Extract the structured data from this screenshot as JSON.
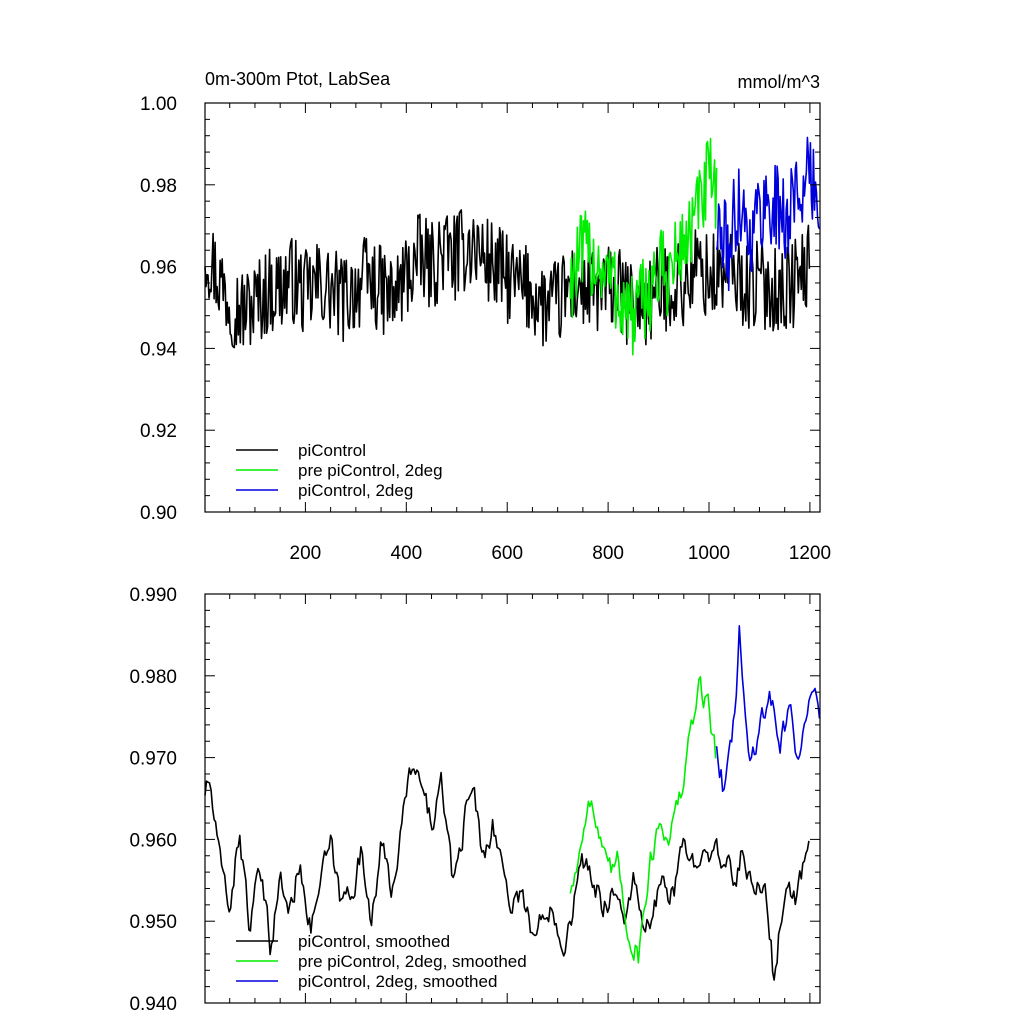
{
  "chart_data": [
    {
      "type": "line",
      "title": "0m-300m Ptot, LabSea",
      "units": "mmol/m^3",
      "xlim": [
        1,
        1220
      ],
      "ylim": [
        0.9,
        1.0
      ],
      "xticks": [
        200,
        400,
        600,
        800,
        1000,
        1200
      ],
      "xtick_labels": [
        "200",
        "400",
        "600",
        "800",
        "1000",
        "1200"
      ],
      "yticks": [
        0.9,
        0.92,
        0.94,
        0.96,
        0.98,
        1.0
      ],
      "ytick_labels": [
        "0.90",
        "0.92",
        "0.94",
        "0.96",
        "0.98",
        "1.00"
      ],
      "grid": false,
      "legend_position": "bottom-left",
      "series": [
        {
          "name": "piControl",
          "color": "#000000",
          "x": [
            1,
            25,
            50,
            75,
            100,
            125,
            150,
            175,
            200,
            225,
            250,
            275,
            300,
            325,
            350,
            375,
            400,
            425,
            450,
            475,
            500,
            525,
            550,
            575,
            600,
            625,
            650,
            675,
            700,
            725,
            750,
            775,
            800,
            825,
            850,
            875,
            900,
            925,
            950,
            975,
            1000,
            1025,
            1050,
            1075,
            1100,
            1125,
            1150,
            1175,
            1200
          ],
          "y": [
            0.965,
            0.958,
            0.952,
            0.949,
            0.951,
            0.954,
            0.955,
            0.957,
            0.953,
            0.956,
            0.954,
            0.952,
            0.955,
            0.957,
            0.954,
            0.952,
            0.958,
            0.962,
            0.96,
            0.964,
            0.962,
            0.966,
            0.963,
            0.96,
            0.957,
            0.955,
            0.954,
            0.95,
            0.951,
            0.955,
            0.955,
            0.953,
            0.955,
            0.953,
            0.95,
            0.951,
            0.954,
            0.956,
            0.955,
            0.96,
            0.957,
            0.958,
            0.958,
            0.955,
            0.956,
            0.955,
            0.954,
            0.957,
            0.96
          ]
        },
        {
          "name": "pre piControl, 2deg",
          "color": "#00ee00",
          "x": [
            725,
            750,
            775,
            800,
            825,
            850,
            875,
            900,
            925,
            950,
            975,
            1000,
            1015
          ],
          "y": [
            0.957,
            0.963,
            0.962,
            0.958,
            0.952,
            0.947,
            0.953,
            0.958,
            0.959,
            0.966,
            0.972,
            0.982,
            0.975
          ]
        },
        {
          "name": "piControl, 2deg",
          "color": "#0000dd",
          "x": [
            1015,
            1040,
            1060,
            1080,
            1100,
            1125,
            1150,
            1175,
            1200,
            1220
          ],
          "y": [
            0.969,
            0.964,
            0.978,
            0.967,
            0.974,
            0.976,
            0.971,
            0.979,
            0.981,
            0.976
          ]
        }
      ]
    },
    {
      "type": "line",
      "title": "",
      "xlim": [
        1,
        1220
      ],
      "ylim": [
        0.94,
        0.99
      ],
      "xticks": [
        200,
        400,
        600,
        800,
        1000,
        1200
      ],
      "xtick_labels": [],
      "yticks": [
        0.94,
        0.95,
        0.96,
        0.97,
        0.98,
        0.99
      ],
      "ytick_labels": [
        "0.940",
        "0.950",
        "0.960",
        "0.970",
        "0.980",
        "0.990"
      ],
      "grid": false,
      "legend_position": "bottom-left",
      "series": [
        {
          "name": "piControl, smoothed",
          "color": "#000000",
          "x": [
            1,
            10,
            30,
            50,
            70,
            90,
            110,
            130,
            150,
            170,
            190,
            210,
            230,
            250,
            270,
            290,
            310,
            330,
            350,
            370,
            390,
            410,
            430,
            450,
            470,
            490,
            510,
            530,
            550,
            570,
            590,
            610,
            630,
            650,
            670,
            690,
            710,
            730,
            750,
            770,
            790,
            810,
            830,
            850,
            870,
            890,
            910,
            930,
            950,
            970,
            990,
            1010,
            1030,
            1050,
            1070,
            1090,
            1110,
            1130,
            1150,
            1170,
            1190,
            1200
          ],
          "y": [
            0.966,
            0.967,
            0.957,
            0.952,
            0.961,
            0.949,
            0.956,
            0.947,
            0.955,
            0.951,
            0.958,
            0.949,
            0.955,
            0.959,
            0.952,
            0.954,
            0.958,
            0.951,
            0.959,
            0.954,
            0.961,
            0.969,
            0.966,
            0.962,
            0.967,
            0.955,
            0.96,
            0.968,
            0.958,
            0.962,
            0.957,
            0.952,
            0.954,
            0.948,
            0.95,
            0.953,
            0.947,
            0.952,
            0.957,
            0.955,
            0.952,
            0.954,
            0.95,
            0.955,
            0.948,
            0.951,
            0.955,
            0.953,
            0.959,
            0.957,
            0.961,
            0.958,
            0.957,
            0.955,
            0.959,
            0.952,
            0.956,
            0.942,
            0.955,
            0.952,
            0.958,
            0.958
          ]
        },
        {
          "name": "pre piControl, 2deg, smoothed",
          "color": "#00ee00",
          "x": [
            725,
            740,
            760,
            780,
            800,
            820,
            840,
            860,
            880,
            900,
            920,
            940,
            960,
            980,
            1000,
            1015
          ],
          "y": [
            0.954,
            0.957,
            0.966,
            0.961,
            0.955,
            0.957,
            0.949,
            0.946,
            0.956,
            0.962,
            0.961,
            0.964,
            0.971,
            0.979,
            0.976,
            0.97
          ]
        },
        {
          "name": "piControl, 2deg, smoothed",
          "color": "#0000dd",
          "x": [
            1015,
            1030,
            1050,
            1060,
            1070,
            1080,
            1100,
            1120,
            1140,
            1160,
            1180,
            1200,
            1220
          ],
          "y": [
            0.972,
            0.966,
            0.974,
            0.986,
            0.976,
            0.969,
            0.974,
            0.978,
            0.972,
            0.976,
            0.969,
            0.98,
            0.976
          ]
        }
      ]
    }
  ]
}
